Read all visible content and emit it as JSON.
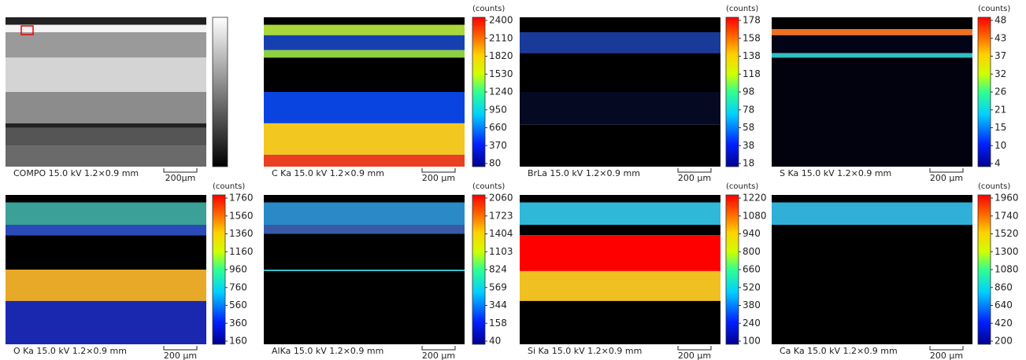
{
  "panels": [
    {
      "caption": "COMPO 15.0 kV 1.2×0.9 mm",
      "scale_bar": "200μm"
    },
    {
      "caption": "C Ka 15.0 kV 1.2×0.9 mm",
      "scale_bar": "200 μm",
      "unit": "(counts)",
      "ticks": [
        2400,
        2110,
        1820,
        1530,
        1240,
        950,
        660,
        370,
        80
      ]
    },
    {
      "caption": "BrLa 15.0 kV 1.2×0.9 mm",
      "scale_bar": "200 μm",
      "unit": "(counts)",
      "ticks": [
        178,
        158,
        138,
        118,
        98,
        78,
        58,
        38,
        18
      ]
    },
    {
      "caption": "S Ka 15.0 kV 1.2×0.9 mm",
      "scale_bar": "200 μm",
      "unit": "(counts)",
      "ticks": [
        48,
        43,
        37,
        32,
        26,
        21,
        15,
        10,
        4
      ]
    },
    {
      "caption": "O Ka 15.0 kV 1.2×0.9 mm",
      "scale_bar": "200 μm",
      "unit": "(counts)",
      "ticks": [
        1760,
        1560,
        1360,
        1160,
        960,
        760,
        560,
        360,
        160
      ]
    },
    {
      "caption": "AlKa 15.0 kV 1.2×0.9 mm",
      "scale_bar": "200 μm",
      "unit": "(counts)",
      "ticks": [
        2060,
        1723,
        1404,
        1103,
        824,
        569,
        344,
        158,
        40
      ]
    },
    {
      "caption": "Si Ka 15.0 kV 1.2×0.9 mm",
      "scale_bar": "200 μm",
      "unit": "(counts)",
      "ticks": [
        1220,
        1080,
        940,
        800,
        660,
        520,
        380,
        240,
        100
      ]
    },
    {
      "caption": "Ca Ka 15.0 kV 1.2×0.9 mm",
      "scale_bar": "200 μm",
      "unit": "(counts)",
      "ticks": [
        1960,
        1740,
        1520,
        1300,
        1080,
        860,
        640,
        420,
        200
      ]
    }
  ]
}
